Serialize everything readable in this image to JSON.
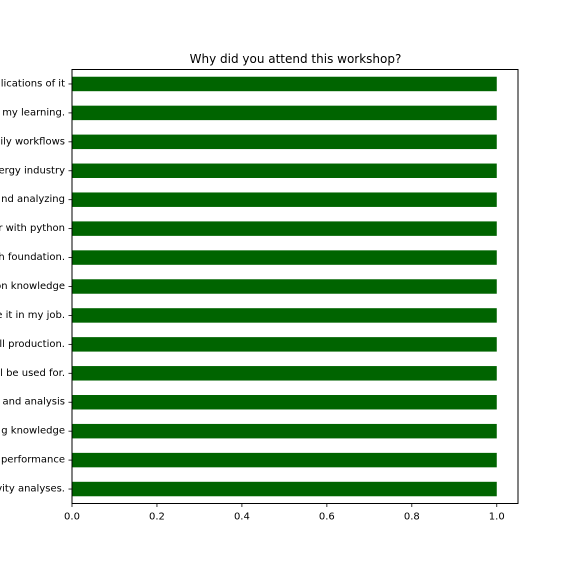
{
  "chart_data": {
    "type": "bar",
    "orientation": "horizontal",
    "title": "Why did you attend this workshop?",
    "xlabel": "",
    "ylabel": "",
    "xlim": [
      0,
      1.05
    ],
    "xticks": [
      0.0,
      0.2,
      0.4,
      0.6,
      0.8,
      1.0
    ],
    "xtick_labels": [
      "0.0",
      "0.2",
      "0.4",
      "0.6",
      "0.8",
      "1.0"
    ],
    "grid": false,
    "legend": "none",
    "colors": {
      "bar": "#006400",
      "axis": "#000000",
      "background": "#ffffff"
    },
    "categories": [
      "lications of it",
      "my learning.",
      "ily workflows",
      "ergy industry",
      "nd analyzing",
      "r with python",
      "h foundation.",
      "on knowledge",
      "e it in my job.",
      "ll production.",
      "l be used for.",
      "and analysis",
      "g knowledge",
      "performance",
      "vity analyses."
    ],
    "values": [
      1,
      1,
      1,
      1,
      1,
      1,
      1,
      1,
      1,
      1,
      1,
      1,
      1,
      1,
      1
    ]
  }
}
